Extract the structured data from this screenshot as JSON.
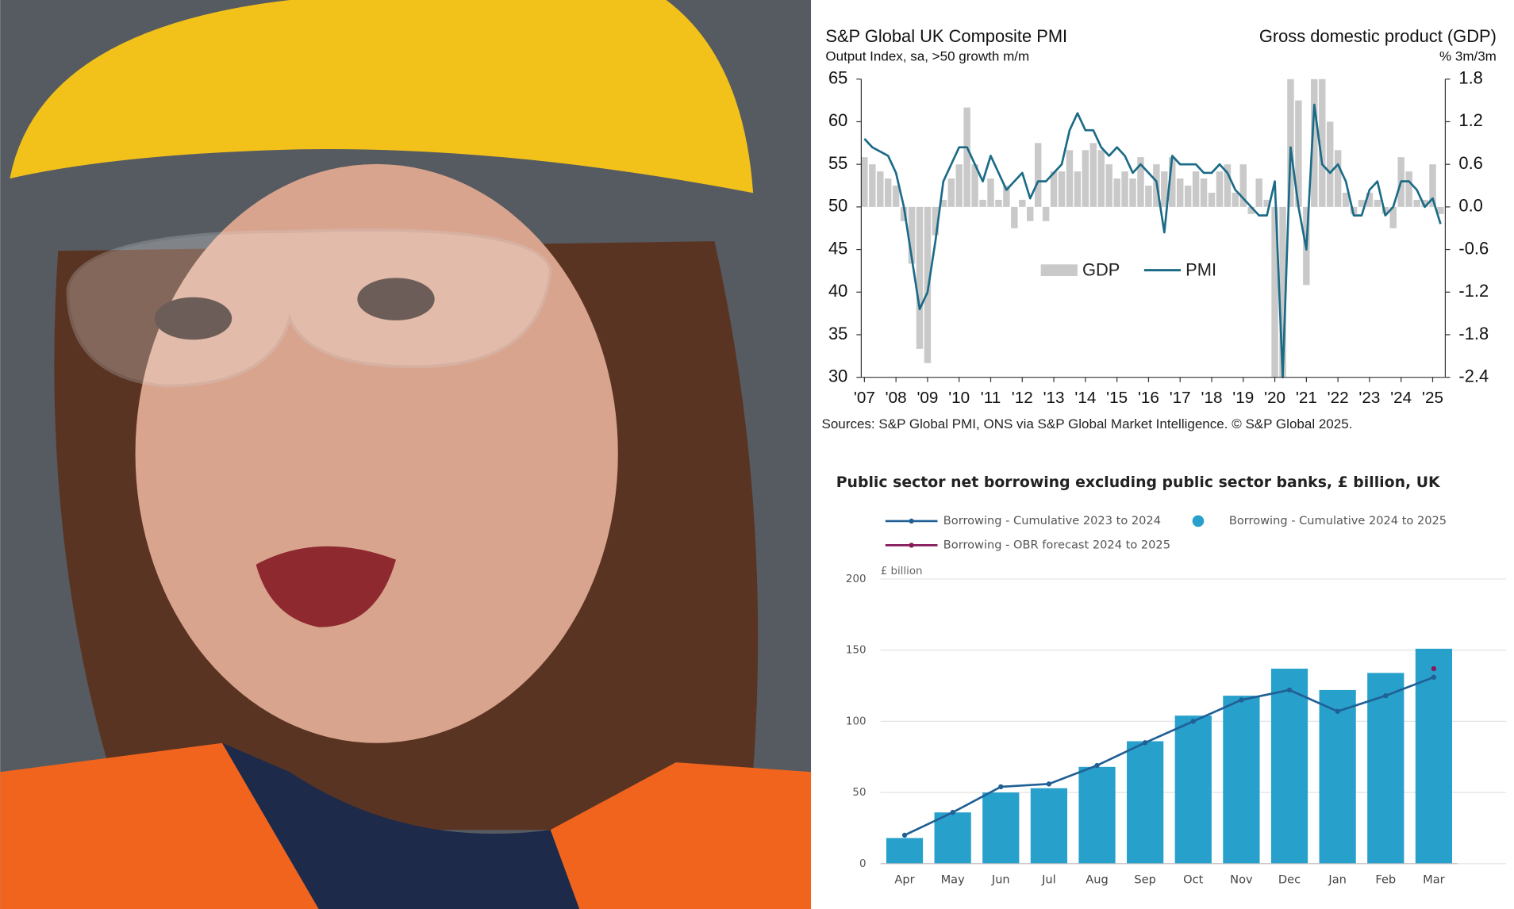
{
  "chart_data": [
    {
      "type": "line",
      "title": "S&P Global UK Composite PMI",
      "subtitle": "Output Index, sa, >50 growth m/m",
      "y2_title": "Gross domestic product (GDP)",
      "y2_subtitle": "% 3m/3m",
      "source": "Sources: S&P Global PMI, ONS via S&P Global Market Intelligence. © S&P Global 2025.",
      "x": [
        2007,
        2007.25,
        2007.5,
        2007.75,
        2008,
        2008.25,
        2008.5,
        2008.75,
        2009,
        2009.25,
        2009.5,
        2009.75,
        2010,
        2010.25,
        2010.5,
        2010.75,
        2011,
        2011.25,
        2011.5,
        2011.75,
        2012,
        2012.25,
        2012.5,
        2012.75,
        2013,
        2013.25,
        2013.5,
        2013.75,
        2014,
        2014.25,
        2014.5,
        2014.75,
        2015,
        2015.25,
        2015.5,
        2015.75,
        2016,
        2016.25,
        2016.5,
        2016.75,
        2017,
        2017.25,
        2017.5,
        2017.75,
        2018,
        2018.25,
        2018.5,
        2018.75,
        2019,
        2019.25,
        2019.5,
        2019.75,
        2020,
        2020.25,
        2020.5,
        2020.75,
        2021,
        2021.25,
        2021.5,
        2021.75,
        2022,
        2022.25,
        2022.5,
        2022.75,
        2023,
        2023.25,
        2023.5,
        2023.75,
        2024,
        2024.25,
        2024.5,
        2024.75,
        2025,
        2025.25
      ],
      "series": [
        {
          "name": "GDP",
          "type": "bar",
          "axis": "y2",
          "color": "#c9c9c9",
          "values": [
            0.7,
            0.6,
            0.5,
            0.4,
            0.3,
            -0.2,
            -0.8,
            -2.0,
            -2.2,
            -0.4,
            0.1,
            0.4,
            0.6,
            1.4,
            0.6,
            0.1,
            0.4,
            0.1,
            0.3,
            -0.3,
            0.1,
            -0.2,
            0.9,
            -0.2,
            0.5,
            0.5,
            0.8,
            0.5,
            0.8,
            0.9,
            0.8,
            0.6,
            0.4,
            0.5,
            0.4,
            0.7,
            0.3,
            0.6,
            0.5,
            0.7,
            0.4,
            0.3,
            0.5,
            0.4,
            0.2,
            0.5,
            0.6,
            0.2,
            0.6,
            -0.1,
            0.4,
            0.1,
            -2.4,
            -2.4,
            1.8,
            1.5,
            -1.1,
            1.8,
            1.8,
            1.2,
            0.8,
            0.2,
            -0.1,
            0.1,
            0.2,
            0.1,
            -0.1,
            -0.3,
            0.7,
            0.5,
            0.1,
            0.1,
            0.6,
            -0.1
          ]
        },
        {
          "name": "PMI",
          "type": "line",
          "color": "#1b6b87",
          "values": [
            58,
            57,
            56.5,
            56,
            54,
            50,
            44,
            38,
            40,
            46,
            53,
            55,
            57,
            57,
            55,
            53,
            56,
            54,
            52,
            53,
            54,
            51,
            53,
            53,
            54,
            55,
            59,
            61,
            59,
            59,
            57,
            56,
            57,
            56,
            54,
            55,
            54,
            53,
            47,
            56,
            55,
            55,
            55,
            54,
            54,
            55,
            54,
            52,
            51,
            50,
            49,
            49,
            53,
            30,
            57,
            50,
            45,
            62,
            55,
            54,
            55,
            53,
            49,
            49,
            52,
            53,
            49,
            50,
            53,
            53,
            52,
            50,
            51,
            48
          ]
        }
      ],
      "xlim": [
        2006.9,
        2025.4
      ],
      "xticks": [
        {
          "value": 2007,
          "label": "'07"
        },
        {
          "value": 2008,
          "label": "'08"
        },
        {
          "value": 2009,
          "label": "'09"
        },
        {
          "value": 2010,
          "label": "'10"
        },
        {
          "value": 2011,
          "label": "'11"
        },
        {
          "value": 2012,
          "label": "'12"
        },
        {
          "value": 2013,
          "label": "'13"
        },
        {
          "value": 2014,
          "label": "'14"
        },
        {
          "value": 2015,
          "label": "'15"
        },
        {
          "value": 2016,
          "label": "'16"
        },
        {
          "value": 2017,
          "label": "'17"
        },
        {
          "value": 2018,
          "label": "'18"
        },
        {
          "value": 2019,
          "label": "'19"
        },
        {
          "value": 2020,
          "label": "'20"
        },
        {
          "value": 2021,
          "label": "'21"
        },
        {
          "value": 2022,
          "label": "'22"
        },
        {
          "value": 2023,
          "label": "'23"
        },
        {
          "value": 2024,
          "label": "'24"
        },
        {
          "value": 2025,
          "label": "'25"
        }
      ],
      "ylim": [
        30,
        65
      ],
      "yticks": [
        30,
        35,
        40,
        45,
        50,
        55,
        60,
        65
      ],
      "y2lim": [
        -2.4,
        1.8
      ],
      "y2ticks": [
        -2.4,
        -1.8,
        -1.2,
        -0.6,
        {
          "value": 0,
          "label": "0.0"
        },
        0.6,
        1.2,
        1.8
      ]
    },
    {
      "type": "bar",
      "title": "Public sector net borrowing excluding public sector banks, £ billion, UK",
      "y_label": "£ billion",
      "categories": [
        "Apr",
        "May",
        "Jun",
        "Jul",
        "Aug",
        "Sep",
        "Oct",
        "Nov",
        "Dec",
        "Jan",
        "Feb",
        "Mar"
      ],
      "series": [
        {
          "name": "Borrowing - Cumulative 2023 to 2024",
          "type": "line",
          "color": "#206095",
          "values": [
            20,
            36,
            54,
            56,
            69,
            85,
            100,
            115,
            122,
            107,
            118,
            131
          ]
        },
        {
          "name": "Borrowing - Cumulative 2024 to 2025",
          "type": "bar",
          "color": "#27a0cc",
          "values": [
            18,
            36,
            50,
            53,
            68,
            86,
            104,
            118,
            137,
            122,
            134,
            151
          ]
        },
        {
          "name": "Borrowing - OBR forecast 2024 to 2025",
          "type": "line",
          "color": "#871a5b",
          "values": [
            null,
            null,
            null,
            null,
            null,
            null,
            null,
            null,
            null,
            null,
            null,
            137
          ]
        }
      ],
      "ylim": [
        0,
        200
      ],
      "yticks": [
        0,
        50,
        100,
        150,
        200
      ],
      "grid": true
    }
  ]
}
